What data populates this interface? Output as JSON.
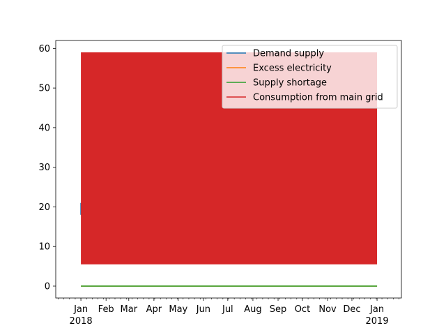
{
  "chart_data": {
    "type": "line",
    "title": "",
    "xlabel": "",
    "ylabel": "",
    "x_range": [
      "2017-12-01",
      "2019-01-31"
    ],
    "ylim": [
      -3,
      62
    ],
    "y_ticks": [
      0,
      10,
      20,
      30,
      40,
      50,
      60
    ],
    "y_tick_labels": [
      "0",
      "10",
      "20",
      "30",
      "40",
      "50",
      "60"
    ],
    "x_ticks": [
      {
        "date": "2018-01-01",
        "label": "Jan",
        "sublabel": "2018"
      },
      {
        "date": "2018-02-01",
        "label": "Feb",
        "sublabel": ""
      },
      {
        "date": "2018-03-01",
        "label": "Mar",
        "sublabel": ""
      },
      {
        "date": "2018-04-01",
        "label": "Apr",
        "sublabel": ""
      },
      {
        "date": "2018-05-01",
        "label": "May",
        "sublabel": ""
      },
      {
        "date": "2018-06-01",
        "label": "Jun",
        "sublabel": ""
      },
      {
        "date": "2018-07-01",
        "label": "Jul",
        "sublabel": ""
      },
      {
        "date": "2018-08-01",
        "label": "Aug",
        "sublabel": ""
      },
      {
        "date": "2018-09-01",
        "label": "Sep",
        "sublabel": ""
      },
      {
        "date": "2018-10-01",
        "label": "Oct",
        "sublabel": ""
      },
      {
        "date": "2018-11-01",
        "label": "Nov",
        "sublabel": ""
      },
      {
        "date": "2018-12-01",
        "label": "Dec",
        "sublabel": ""
      },
      {
        "date": "2019-01-01",
        "label": "Jan",
        "sublabel": "2019"
      }
    ],
    "legend_position": "top-right",
    "grid": false,
    "series": [
      {
        "name": "Demand supply",
        "color": "#1f77b4",
        "values": [
          {
            "x": "2018-01-01",
            "y": 18
          },
          {
            "x": "2018-01-01",
            "y": 21
          }
        ]
      },
      {
        "name": "Excess electricity",
        "color": "#ff7f0e",
        "values": [
          {
            "x": "2018-01-01",
            "y": 0
          },
          {
            "x": "2019-01-01",
            "y": 0
          }
        ]
      },
      {
        "name": "Supply shortage",
        "color": "#2ca02c",
        "values": [
          {
            "x": "2018-01-01",
            "y": 0
          },
          {
            "x": "2019-01-01",
            "y": 0
          }
        ]
      },
      {
        "name": "Consumption from main grid",
        "color": "#d62728",
        "values": [
          {
            "x": "2018-01-01",
            "y": 5.5
          },
          {
            "x": "2019-01-01",
            "y": 59
          }
        ],
        "band": {
          "x_start": "2018-01-01",
          "x_end": "2019-01-01",
          "y_min": 5.5,
          "y_max": 59
        }
      }
    ]
  }
}
